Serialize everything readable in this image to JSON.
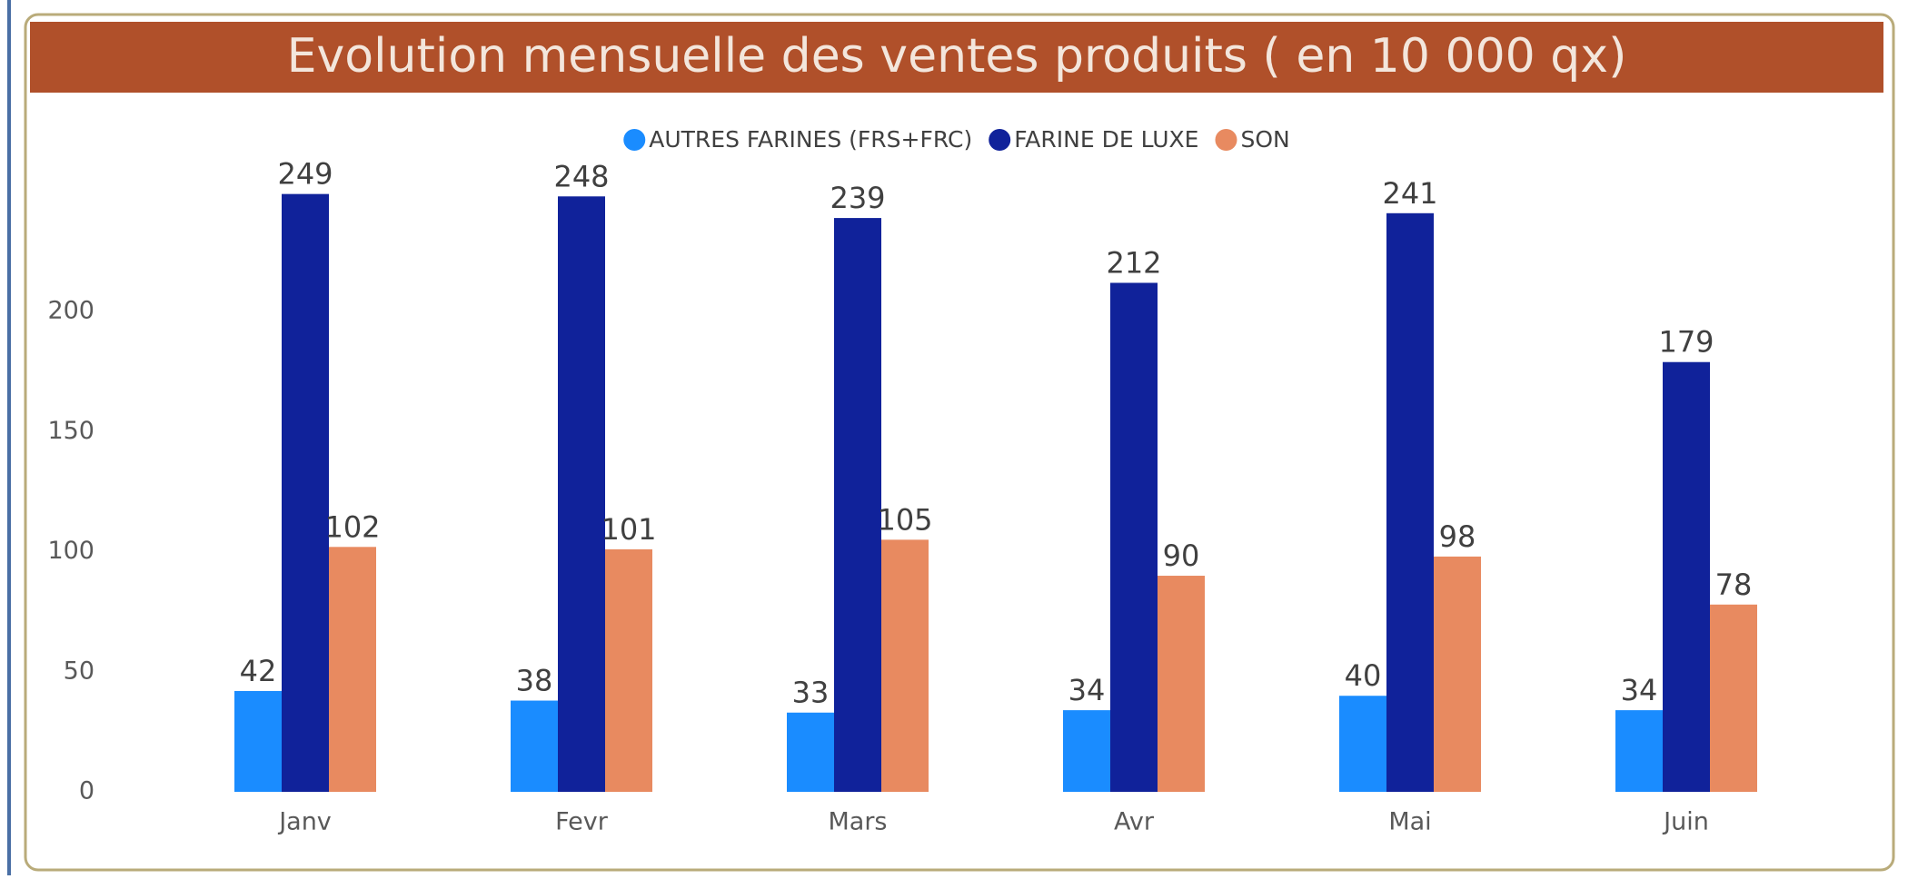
{
  "chart_data": {
    "type": "bar",
    "title": "Evolution mensuelle des ventes produits ( en 10 000 qx)",
    "categories": [
      "Janv",
      "Fevr",
      "Mars",
      "Avr",
      "Mai",
      "Juin"
    ],
    "series": [
      {
        "name": "AUTRES FARINES (FRS+FRC)",
        "color": "#1a8cff",
        "values": [
          42,
          38,
          33,
          34,
          40,
          34
        ]
      },
      {
        "name": "FARINE DE LUXE",
        "color": "#10229a",
        "values": [
          249,
          248,
          239,
          212,
          241,
          179
        ]
      },
      {
        "name": "SON",
        "color": "#e88a60",
        "values": [
          102,
          101,
          105,
          90,
          98,
          78
        ]
      }
    ],
    "ylim": [
      0,
      250
    ],
    "yticks": [
      0,
      50,
      100,
      150,
      200
    ],
    "grid": false,
    "legend": "top"
  }
}
